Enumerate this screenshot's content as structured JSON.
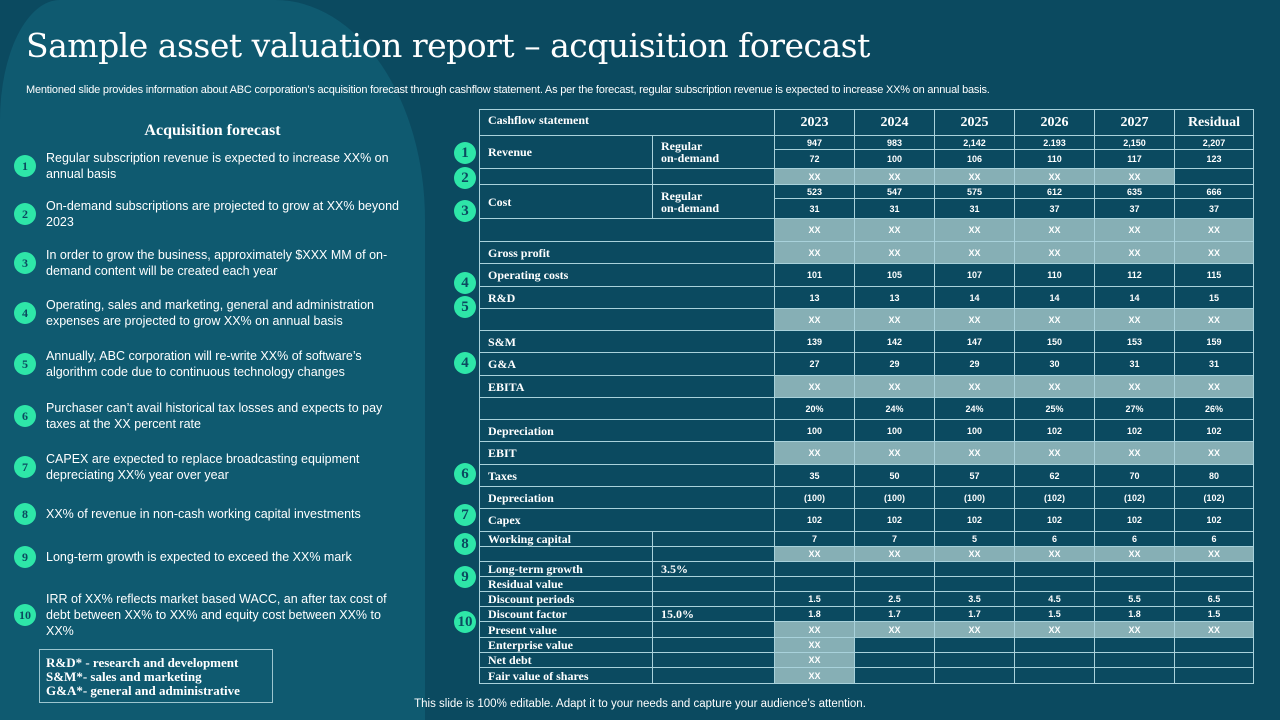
{
  "title": "Sample asset valuation report – acquisition forecast",
  "subtitle": "Mentioned slide provides information about ABC corporation’s acquisition forecast through cashflow statement. As per the forecast, regular subscription revenue is expected to increase XX% on annual basis.",
  "colors": {
    "background": "#0b4a60",
    "panel": "#0f5a70",
    "badge": "#2ee6a8",
    "shaded_cell": "#86afb5",
    "border": "#a9d2db"
  },
  "left_panel": {
    "title": "Acquisition forecast",
    "items": [
      {
        "num": "1",
        "text": "Regular subscription revenue  is expected to increase XX% on annual basis"
      },
      {
        "num": "2",
        "text": "On-demand  subscriptions are projected to grow  at XX% beyond 2023"
      },
      {
        "num": "3",
        "text": "In order to grow the business, approximately $XXX  MM of on-demand  content will be created each year"
      },
      {
        "num": "4",
        "text": "Operating, sales and marketing, general and administration expenses are projected to grow XX%  on annual basis"
      },
      {
        "num": "5",
        "text": "Annually, ABC corporation will re-write  XX%  of software’s algorithm code due to continuous technology changes"
      },
      {
        "num": "6",
        "text": "Purchaser can’t avail historical tax losses and expects to pay taxes at the XX  percent rate"
      },
      {
        "num": "7",
        "text": "CAPEX are expected to replace broadcasting equipment depreciating XX%  year over year"
      },
      {
        "num": "8",
        "text": "XX%  of revenue  in non-cash working capital investments"
      },
      {
        "num": "9",
        "text": "Long-term growth  is expected to exceed the XX%  mark"
      },
      {
        "num": "10",
        "text": "IRR of XX%  reflects market based WACC, an after tax cost of debt between  XX%  to XX%  and equity cost between XX%  to XX%"
      }
    ],
    "legend": [
      "R&D* - research and development",
      "S&M*- sales and marketing",
      "G&A*- general and administrative"
    ]
  },
  "table": {
    "header": {
      "label": "Cashflow statement",
      "years": [
        "2023",
        "2024",
        "2025",
        "2026",
        "2027",
        "Residual"
      ]
    },
    "rows": [
      {
        "label": "Revenue",
        "sub": "Regular\non-demand",
        "span": 2,
        "values": [
          "947",
          "983",
          "2,142",
          "2.193",
          "2,150",
          "2,207"
        ]
      },
      {
        "cont": true,
        "values": [
          "72",
          "100",
          "106",
          "110",
          "117",
          "123"
        ]
      },
      {
        "label": "",
        "sub": "",
        "values": [
          "XX",
          "XX",
          "XX",
          "XX",
          "XX",
          ""
        ],
        "shaded": [
          1,
          1,
          1,
          1,
          1,
          0
        ]
      },
      {
        "label": "Cost",
        "sub": "Regular\non-demand",
        "span": 2,
        "values": [
          "523",
          "547",
          "575",
          "612",
          "635",
          "666"
        ]
      },
      {
        "cont": true,
        "values": [
          "31",
          "31",
          "31",
          "37",
          "37",
          "37"
        ]
      },
      {
        "label": "",
        "full": true,
        "values": [
          "XX",
          "XX",
          "XX",
          "XX",
          "XX",
          "XX"
        ],
        "shaded": [
          1,
          1,
          1,
          1,
          1,
          1
        ]
      },
      {
        "label": "Gross profit",
        "full": true,
        "values": [
          "XX",
          "XX",
          "XX",
          "XX",
          "XX",
          "XX"
        ],
        "shaded": [
          1,
          1,
          1,
          1,
          1,
          1
        ]
      },
      {
        "label": "Operating costs",
        "full": true,
        "values": [
          "101",
          "105",
          "107",
          "110",
          "112",
          "115"
        ]
      },
      {
        "label": "R&D",
        "full": true,
        "values": [
          "13",
          "13",
          "14",
          "14",
          "14",
          "15"
        ]
      },
      {
        "label": "",
        "full": true,
        "values": [
          "XX",
          "XX",
          "XX",
          "XX",
          "XX",
          "XX"
        ],
        "shaded": [
          1,
          1,
          1,
          1,
          1,
          1
        ]
      },
      {
        "label": "S&M",
        "full": true,
        "values": [
          "139",
          "142",
          "147",
          "150",
          "153",
          "159"
        ]
      },
      {
        "label": "G&A",
        "full": true,
        "values": [
          "27",
          "29",
          "29",
          "30",
          "31",
          "31"
        ]
      },
      {
        "label": "EBITA",
        "full": true,
        "values": [
          "XX",
          "XX",
          "XX",
          "XX",
          "XX",
          "XX"
        ],
        "shaded": [
          1,
          1,
          1,
          1,
          1,
          1
        ]
      },
      {
        "label": "",
        "full": true,
        "values": [
          "20%",
          "24%",
          "24%",
          "25%",
          "27%",
          "26%"
        ]
      },
      {
        "label": "Depreciation",
        "full": true,
        "values": [
          "100",
          "100",
          "100",
          "102",
          "102",
          "102"
        ]
      },
      {
        "label": "EBIT",
        "full": true,
        "values": [
          "XX",
          "XX",
          "XX",
          "XX",
          "XX",
          "XX"
        ],
        "shaded": [
          1,
          1,
          1,
          1,
          1,
          1
        ]
      },
      {
        "label": "Taxes",
        "full": true,
        "values": [
          "35",
          "50",
          "57",
          "62",
          "70",
          "80"
        ]
      },
      {
        "label": "Depreciation",
        "full": true,
        "values": [
          "(100)",
          "(100)",
          "(100)",
          "(102)",
          "(102)",
          "(102)"
        ]
      },
      {
        "label": "Capex",
        "full": true,
        "values": [
          "102",
          "102",
          "102",
          "102",
          "102",
          "102"
        ]
      },
      {
        "label": "Working capital",
        "sub": "",
        "values": [
          "7",
          "7",
          "5",
          "6",
          "6",
          "6"
        ]
      },
      {
        "label": "",
        "sub": "",
        "values": [
          "XX",
          "XX",
          "XX",
          "XX",
          "XX",
          "XX"
        ],
        "shaded": [
          1,
          1,
          1,
          1,
          1,
          1
        ]
      },
      {
        "label": "Long-term growth",
        "sub": "3.5%",
        "values": [
          "",
          "",
          "",
          "",
          "",
          ""
        ]
      },
      {
        "label": "Residual value",
        "sub": "",
        "values": [
          "",
          "",
          "",
          "",
          "",
          ""
        ]
      },
      {
        "label": "Discount periods",
        "sub": "",
        "values": [
          "1.5",
          "2.5",
          "3.5",
          "4.5",
          "5.5",
          "6.5"
        ]
      },
      {
        "label": "Discount factor",
        "sub": "15.0%",
        "values": [
          "1.8",
          "1.7",
          "1.7",
          "1.5",
          "1.8",
          "1.5"
        ]
      },
      {
        "label": "Present value",
        "sub": "",
        "values": [
          "XX",
          "XX",
          "XX",
          "XX",
          "XX",
          "XX"
        ],
        "shaded": [
          1,
          1,
          1,
          1,
          1,
          1
        ]
      },
      {
        "label": "Enterprise value",
        "sub": "",
        "values": [
          "XX",
          "",
          "",
          "",
          "",
          ""
        ],
        "shaded": [
          1,
          0,
          0,
          0,
          0,
          0
        ]
      },
      {
        "label": "Net debt",
        "sub": "",
        "values": [
          "XX",
          "",
          "",
          "",
          "",
          ""
        ],
        "shaded": [
          1,
          0,
          0,
          0,
          0,
          0
        ]
      },
      {
        "label": "Fair value of shares",
        "sub": "",
        "values": [
          "XX",
          "",
          "",
          "",
          "",
          ""
        ],
        "shaded": [
          1,
          0,
          0,
          0,
          0,
          0
        ]
      }
    ],
    "badges": [
      "1",
      "2",
      "3",
      "4",
      "5",
      "4",
      "6",
      "7",
      "8",
      "9",
      "10"
    ]
  },
  "footer": "This slide is 100% editable. Adapt it to your needs and capture your audience’s attention."
}
